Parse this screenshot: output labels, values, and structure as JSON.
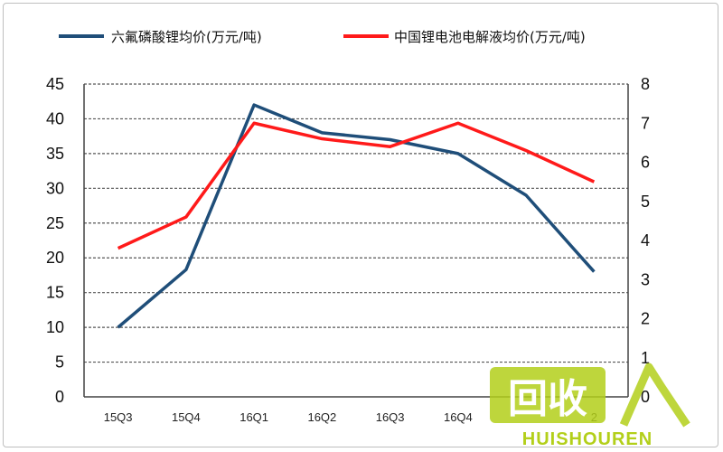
{
  "chart_data": {
    "type": "line",
    "categories": [
      "15Q3",
      "15Q4",
      "16Q1",
      "16Q2",
      "16Q3",
      "16Q4",
      "17Q1",
      "17Q2"
    ],
    "series": [
      {
        "name": "六氟磷酸锂均价(万元/吨)",
        "axis": "left",
        "color": "#1f4e79",
        "values": [
          10,
          18.3,
          42,
          38,
          37,
          35,
          29,
          18
        ]
      },
      {
        "name": "中国锂电池电解液均价(万元/吨)",
        "axis": "right",
        "color": "#ff1a1a",
        "values": [
          3.8,
          4.6,
          7.0,
          6.6,
          6.4,
          7.0,
          6.3,
          5.5
        ]
      }
    ],
    "y_left": {
      "min": 0,
      "max": 45,
      "step": 5
    },
    "y_right": {
      "min": 0,
      "max": 8,
      "step": 1
    },
    "x_tick_labels_visible": [
      "15Q3",
      "15Q4",
      "16Q1",
      "16Q2",
      "16Q3",
      "16Q4",
      "",
      "2"
    ],
    "grid": "horizontal-dashed",
    "legend_position": "top"
  },
  "watermark": {
    "text": "HUISHOUREN",
    "logo_text": "回收"
  }
}
